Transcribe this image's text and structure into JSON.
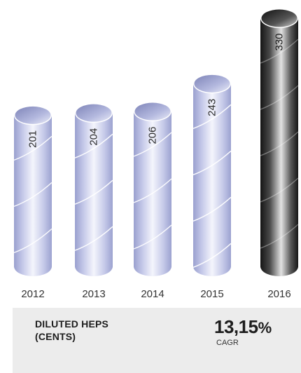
{
  "chart_data": {
    "type": "bar",
    "categories": [
      "2012",
      "2013",
      "2014",
      "2015",
      "2016"
    ],
    "values": [
      201,
      204,
      206,
      243,
      330
    ],
    "highlight_index": 4,
    "colors": {
      "bar": "#c9cdea",
      "highlight": "#3a3a3a"
    }
  },
  "footer": {
    "title_line1": "DILUTED HEPS",
    "title_line2": "(CENTS)",
    "cagr_value": "13,15",
    "cagr_unit": "%",
    "cagr_label": "CAGR"
  }
}
